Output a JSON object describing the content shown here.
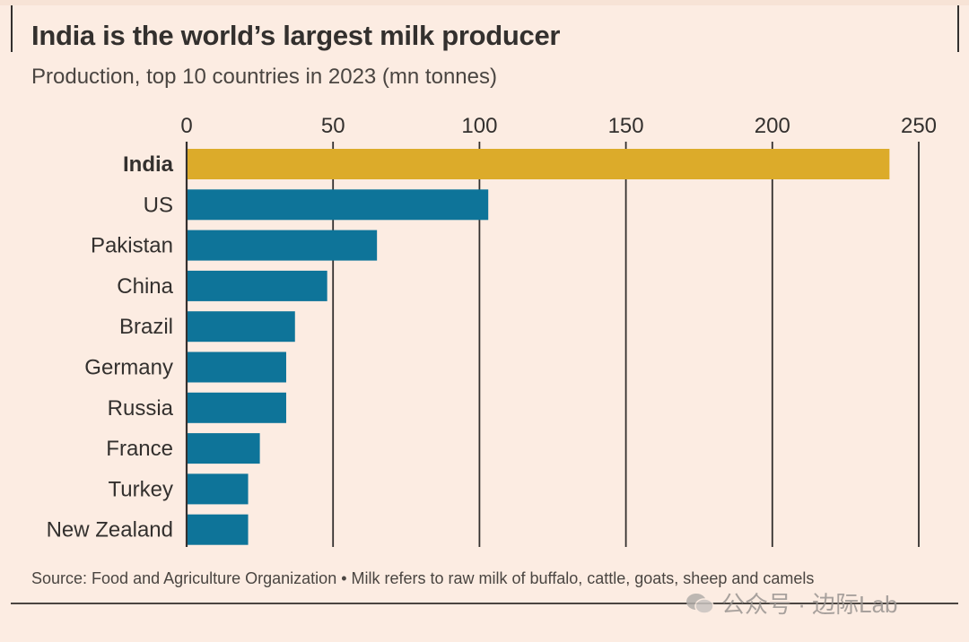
{
  "title": "India is the world’s largest milk producer",
  "subtitle": "Production, top 10 countries in 2023 (mn tonnes)",
  "source": "Source: Food and Agriculture Organization • Milk refers to raw milk of buffalo, cattle, goats, sheep and camels",
  "watermark": "公众号 · 边际Lab",
  "colors": {
    "highlight": "#dcab2a",
    "bar": "#0e7499",
    "grid": "#33302e",
    "text": "#33302e"
  },
  "chart_data": {
    "type": "bar",
    "orientation": "horizontal",
    "title": "India is the world’s largest milk producer",
    "subtitle": "Production, top 10 countries in 2023 (mn tonnes)",
    "xlabel": "",
    "ylabel": "",
    "xlim": [
      0,
      250
    ],
    "xticks": [
      0,
      50,
      100,
      150,
      200,
      250
    ],
    "grid": true,
    "axis_position": "top",
    "categories": [
      "India",
      "US",
      "Pakistan",
      "China",
      "Brazil",
      "Germany",
      "Russia",
      "France",
      "Turkey",
      "New Zealand"
    ],
    "values": [
      240,
      103,
      65,
      48,
      37,
      34,
      34,
      25,
      21,
      21
    ],
    "highlight": "India"
  }
}
